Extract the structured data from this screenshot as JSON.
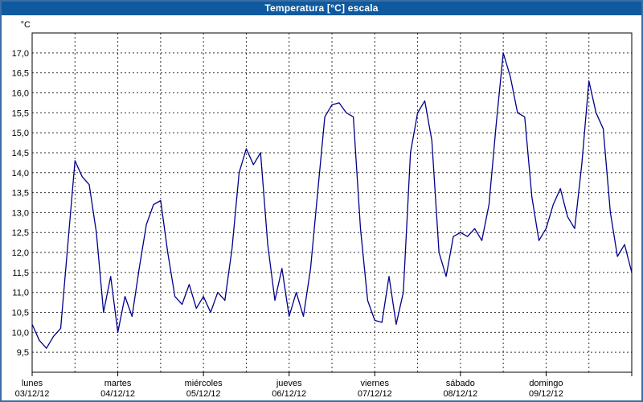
{
  "window": {
    "title": "Temperatura [°C] escala"
  },
  "colors": {
    "frame_border": "#3a6ea5",
    "title_bar_bg": "#0f5a9e",
    "title_text": "#ffffff",
    "grid": "#333333",
    "axis": "#000000",
    "line": "#00008b"
  },
  "chart_data": {
    "type": "line",
    "title": "Temperatura [°C] escala",
    "unit_label": "°C",
    "ylabel": "°C",
    "ylim": [
      9.0,
      17.5
    ],
    "grid": "dashed",
    "legend": "none",
    "line_color": "#00008b",
    "x_range_hours": [
      0,
      168
    ],
    "vgrid_interval_hours": 12,
    "x_start_hours": 0,
    "x_step_hours": 2,
    "yticks": [
      {
        "value": 9.5,
        "label": "9,5"
      },
      {
        "value": 10.0,
        "label": "10,0"
      },
      {
        "value": 10.5,
        "label": "10,5"
      },
      {
        "value": 11.0,
        "label": "11,0"
      },
      {
        "value": 11.5,
        "label": "11,5"
      },
      {
        "value": 12.0,
        "label": "12,0"
      },
      {
        "value": 12.5,
        "label": "12,5"
      },
      {
        "value": 13.0,
        "label": "13,0"
      },
      {
        "value": 13.5,
        "label": "13,5"
      },
      {
        "value": 14.0,
        "label": "14,0"
      },
      {
        "value": 14.5,
        "label": "14,5"
      },
      {
        "value": 15.0,
        "label": "15,0"
      },
      {
        "value": 15.5,
        "label": "15,5"
      },
      {
        "value": 16.0,
        "label": "16,0"
      },
      {
        "value": 16.5,
        "label": "16,5"
      },
      {
        "value": 17.0,
        "label": "17,0"
      }
    ],
    "days": [
      {
        "name": "lunes",
        "date": "03/12/12"
      },
      {
        "name": "martes",
        "date": "04/12/12"
      },
      {
        "name": "miércoles",
        "date": "05/12/12"
      },
      {
        "name": "jueves",
        "date": "06/12/12"
      },
      {
        "name": "viernes",
        "date": "07/12/12"
      },
      {
        "name": "sábado",
        "date": "08/12/12"
      },
      {
        "name": "domingo",
        "date": "09/12/12"
      }
    ],
    "values": [
      10.2,
      9.8,
      9.6,
      9.9,
      10.1,
      12.2,
      14.3,
      13.9,
      13.7,
      12.5,
      10.5,
      11.4,
      10.0,
      10.9,
      10.4,
      11.6,
      12.7,
      13.2,
      13.3,
      12.0,
      10.9,
      10.7,
      11.2,
      10.6,
      10.9,
      10.5,
      11.0,
      10.8,
      12.1,
      14.0,
      14.6,
      14.2,
      14.5,
      12.2,
      10.8,
      11.6,
      10.4,
      11.0,
      10.4,
      11.6,
      13.5,
      15.4,
      15.7,
      15.75,
      15.5,
      15.4,
      12.6,
      10.8,
      10.3,
      10.25,
      11.4,
      10.2,
      11.0,
      14.5,
      15.5,
      15.8,
      14.8,
      12.0,
      11.4,
      12.4,
      12.5,
      12.4,
      12.6,
      12.3,
      13.2,
      15.2,
      17.0,
      16.4,
      15.5,
      15.4,
      13.4,
      12.3,
      12.6,
      13.2,
      13.6,
      12.9,
      12.6,
      14.2,
      16.3,
      15.5,
      15.1,
      13.0,
      11.9,
      12.2,
      11.5
    ]
  }
}
